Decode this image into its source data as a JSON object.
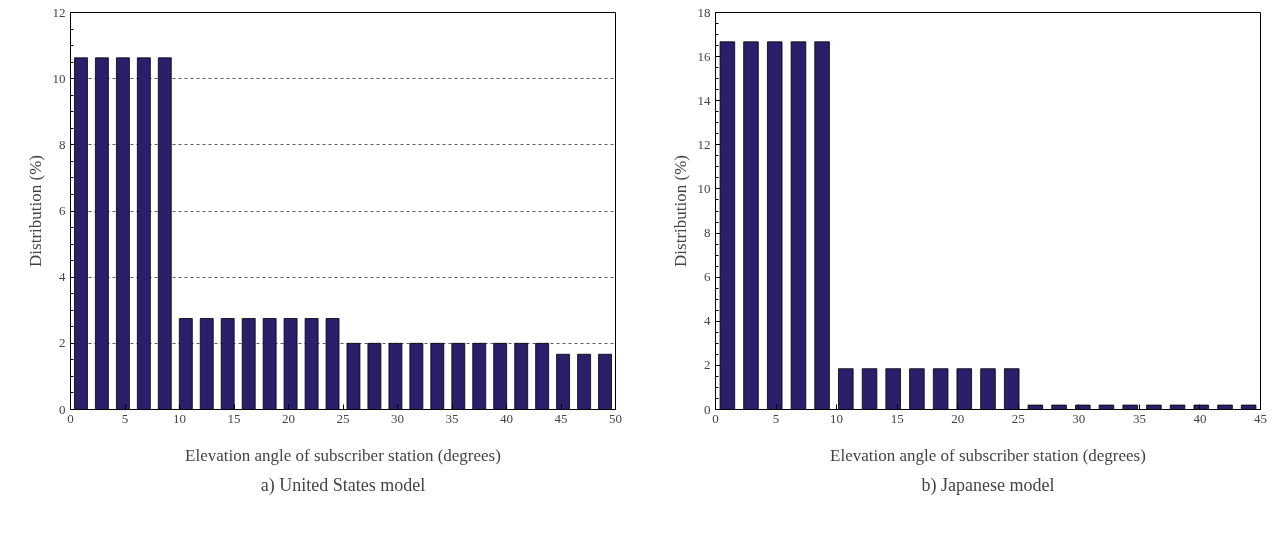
{
  "chart_data": [
    {
      "type": "bar",
      "title": "a) United States model",
      "xlabel": "Elevation angle of subscriber station (degrees)",
      "ylabel": "Distribution (%)",
      "color": "#2a1f6b",
      "x": [
        0.96,
        2.88,
        4.81,
        6.73,
        8.65,
        10.58,
        12.5,
        14.42,
        16.35,
        18.27,
        20.19,
        22.12,
        24.04,
        25.96,
        27.88,
        29.81,
        31.73,
        33.65,
        35.58,
        37.5,
        39.42,
        41.35,
        43.27,
        45.19,
        47.12,
        49.04
      ],
      "values": [
        10.63,
        10.63,
        10.63,
        10.63,
        10.63,
        2.75,
        2.75,
        2.75,
        2.75,
        2.75,
        2.75,
        2.75,
        2.75,
        2.0,
        2.0,
        2.0,
        2.0,
        2.0,
        2.0,
        2.0,
        2.0,
        2.0,
        2.0,
        1.67,
        1.67,
        1.67
      ],
      "xlim": [
        0,
        50
      ],
      "xticks": [
        0,
        5,
        10,
        15,
        20,
        25,
        30,
        35,
        40,
        45,
        50
      ],
      "ylim": [
        0,
        12
      ],
      "yticks": [
        0,
        2,
        4,
        6,
        8,
        10,
        12
      ],
      "grid": "y"
    },
    {
      "type": "bar",
      "title": "b) Japanese model",
      "xlabel": "Elevation angle of subscriber station (degrees)",
      "ylabel": "Distribution (%)",
      "color": "#2a1f6b",
      "x": [
        0.98,
        2.93,
        4.89,
        6.85,
        8.8,
        10.76,
        12.72,
        14.67,
        16.63,
        18.59,
        20.54,
        22.5,
        24.46,
        26.41,
        28.37,
        30.33,
        32.28,
        34.24,
        36.2,
        38.15,
        40.11,
        42.07,
        44.02
      ],
      "values": [
        16.67,
        16.67,
        16.67,
        16.67,
        16.67,
        1.85,
        1.85,
        1.85,
        1.85,
        1.85,
        1.85,
        1.85,
        1.85,
        0.2,
        0.2,
        0.2,
        0.2,
        0.2,
        0.2,
        0.2,
        0.2,
        0.2,
        0.2
      ],
      "xlim": [
        0,
        45
      ],
      "xticks": [
        0,
        5,
        10,
        15,
        20,
        25,
        30,
        35,
        40,
        45
      ],
      "ylim": [
        0,
        18
      ],
      "yticks": [
        0,
        2,
        4,
        6,
        8,
        10,
        12,
        14,
        16,
        18
      ]
    }
  ]
}
